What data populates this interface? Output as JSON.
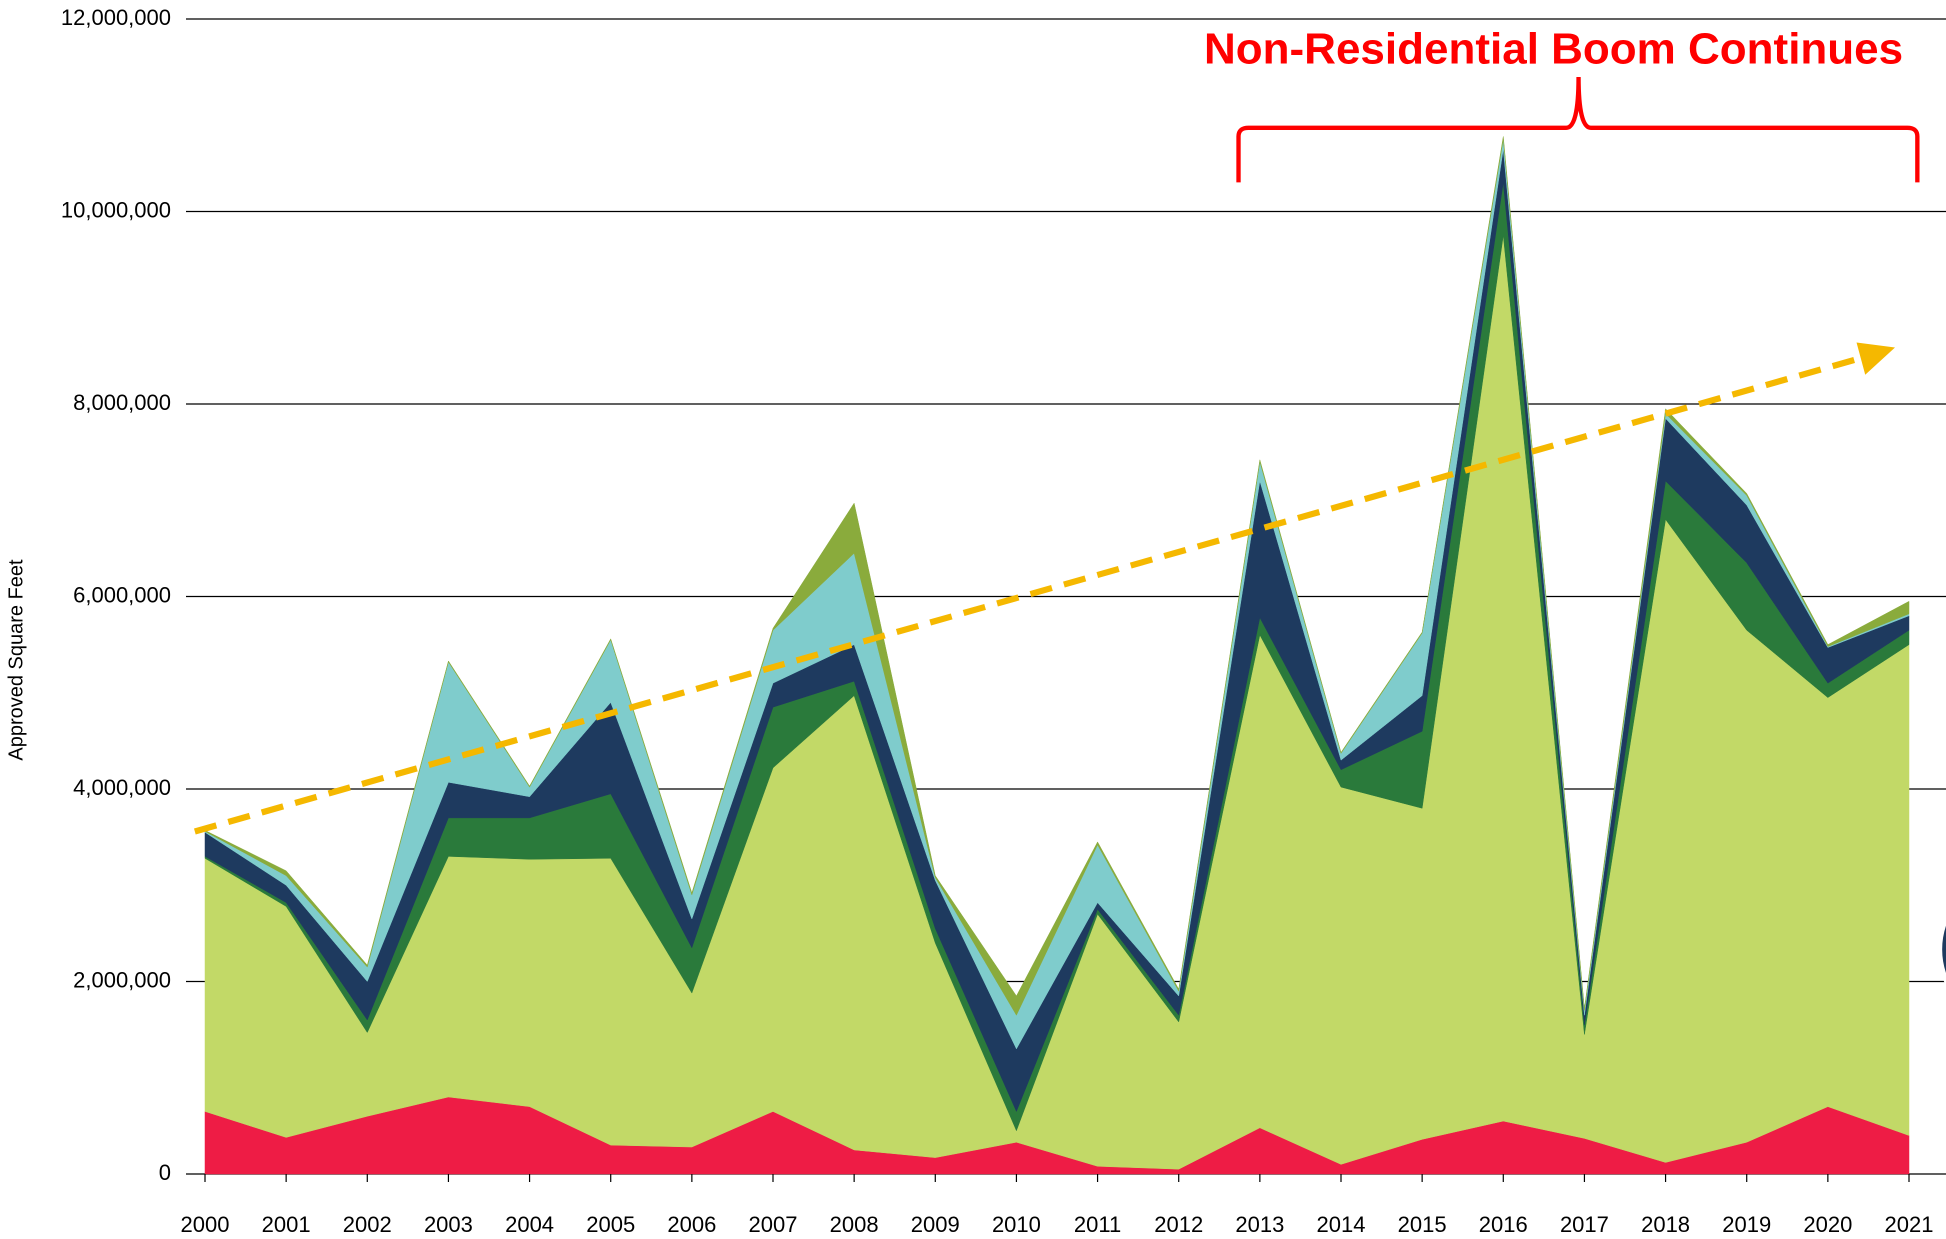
{
  "chart_data": {
    "type": "stacked_area",
    "annotation": "Non-Residential Boom Continues",
    "y_label": "Approved Square Feet",
    "categories": [
      "2000",
      "2001",
      "2002",
      "2003",
      "2004",
      "2005",
      "2006",
      "2007",
      "2008",
      "2009",
      "2010",
      "2011",
      "2012",
      "2013",
      "2014",
      "2015",
      "2016",
      "2017",
      "2018",
      "2019",
      "2020",
      "2021"
    ],
    "series": [
      {
        "color": "#ee1c45",
        "values": [
          650000,
          380000,
          600000,
          800000,
          700000,
          300000,
          280000,
          650000,
          250000,
          170000,
          330000,
          80000,
          50000,
          480000,
          100000,
          360000,
          550000,
          370000,
          120000,
          330000,
          700000,
          400000
        ]
      },
      {
        "color": "#c2d967",
        "values": [
          2630000,
          2400000,
          870000,
          2500000,
          2570000,
          2980000,
          1600000,
          3570000,
          4720000,
          2230000,
          120000,
          2620000,
          1530000,
          5120000,
          3920000,
          3440000,
          9200000,
          1080000,
          6680000,
          5320000,
          4250000,
          5100000
        ]
      },
      {
        "color": "#2a7a3b",
        "values": [
          20000,
          40000,
          130000,
          400000,
          430000,
          670000,
          470000,
          630000,
          150000,
          150000,
          200000,
          50000,
          70000,
          180000,
          180000,
          800000,
          550000,
          100000,
          400000,
          700000,
          150000,
          150000
        ]
      },
      {
        "color": "#1e3a5f",
        "values": [
          250000,
          180000,
          400000,
          370000,
          220000,
          950000,
          300000,
          250000,
          380000,
          500000,
          650000,
          70000,
          200000,
          1420000,
          100000,
          370000,
          350000,
          100000,
          650000,
          600000,
          370000,
          150000
        ]
      },
      {
        "color": "#7fcccc",
        "values": [
          10000,
          100000,
          150000,
          1250000,
          100000,
          650000,
          250000,
          550000,
          950000,
          30000,
          350000,
          600000,
          50000,
          200000,
          70000,
          650000,
          100000,
          50000,
          50000,
          100000,
          10000,
          20000
        ]
      },
      {
        "color": "#8aab3c",
        "values": [
          10000,
          50000,
          20000,
          10000,
          10000,
          10000,
          20000,
          20000,
          520000,
          20000,
          200000,
          30000,
          20000,
          20000,
          10000,
          10000,
          30000,
          20000,
          50000,
          20000,
          20000,
          130000
        ]
      }
    ],
    "ylim": [
      0,
      12000000
    ],
    "yticks": [
      0,
      {
        "value": 2000000,
        "label": "2,000,000"
      },
      {
        "value": 4000000,
        "label": "4,000,000"
      },
      {
        "value": 6000000,
        "label": "6,000,000"
      },
      {
        "value": 8000000,
        "label": "8,000,000"
      },
      {
        "value": 10000000,
        "label": "10,000,000"
      },
      {
        "value": 12000000,
        "label": "12,000,000"
      }
    ],
    "grid": true
  }
}
